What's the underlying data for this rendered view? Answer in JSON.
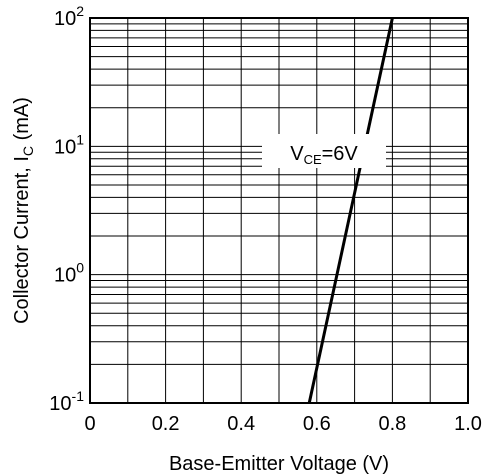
{
  "chart_data": {
    "type": "line",
    "xlabel": "Base-Emitter Voltage (V)",
    "ylabel_main": "Collector Current, I",
    "ylabel_sub": "C",
    "ylabel_unit": " (mA)",
    "xlim": [
      0,
      1.0
    ],
    "ylim": [
      0.1,
      100
    ],
    "yscale": "log",
    "grid": true,
    "x_ticks": [
      0,
      0.2,
      0.4,
      0.6,
      0.8,
      1.0
    ],
    "x_tick_labels": [
      "0",
      "0.2",
      "0.4",
      "0.6",
      "0.8",
      "1.0"
    ],
    "y_ticks": [
      {
        "value": 0.1,
        "base": "10",
        "exp": "-1"
      },
      {
        "value": 1,
        "base": "10",
        "exp": "0"
      },
      {
        "value": 10,
        "base": "10",
        "exp": "1"
      },
      {
        "value": 100,
        "base": "10",
        "exp": "2"
      }
    ],
    "series": [
      {
        "x": [
          0.58,
          0.8
        ],
        "y": [
          0.1,
          100
        ]
      }
    ],
    "annotation": {
      "main": "V",
      "sub": "CE",
      "rest": "=6V"
    }
  }
}
